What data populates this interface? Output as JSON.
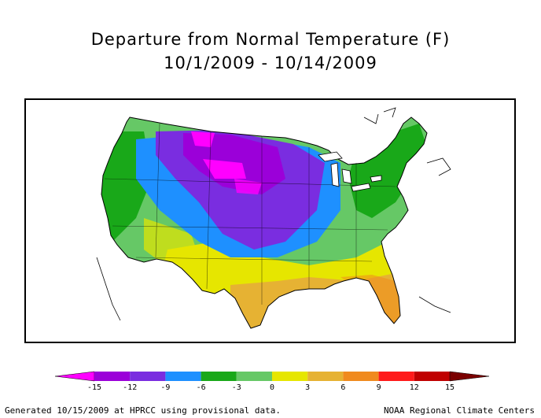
{
  "title": {
    "line1": "Departure from Normal Temperature (F)",
    "line2": "10/1/2009 - 10/14/2009"
  },
  "map": {
    "region": "Contiguous United States",
    "shading": "temperature departure from normal"
  },
  "legend": {
    "unit": "F",
    "ticks": [
      "-15",
      "-12",
      "-9",
      "-6",
      "-3",
      "0",
      "3",
      "6",
      "9",
      "12",
      "15"
    ],
    "low_arrow_color": "#ff00ff",
    "high_arrow_color": "#7a0000",
    "bins": [
      {
        "from": -15,
        "to": -12,
        "color": "#9b00d9"
      },
      {
        "from": -12,
        "to": -9,
        "color": "#7a2de0"
      },
      {
        "from": -9,
        "to": -6,
        "color": "#1e90ff"
      },
      {
        "from": -6,
        "to": -3,
        "color": "#19a819"
      },
      {
        "from": -3,
        "to": 0,
        "color": "#66c866"
      },
      {
        "from": 0,
        "to": 3,
        "color": "#e6e600"
      },
      {
        "from": 3,
        "to": 6,
        "color": "#e6b233"
      },
      {
        "from": 6,
        "to": 9,
        "color": "#f08a1e"
      },
      {
        "from": 9,
        "to": 12,
        "color": "#ff1a1a"
      },
      {
        "from": 12,
        "to": 15,
        "color": "#c00000"
      }
    ]
  },
  "footer": {
    "left": "Generated 10/15/2009 at HPRCC using provisional data.",
    "right": "NOAA Regional Climate Centers"
  }
}
